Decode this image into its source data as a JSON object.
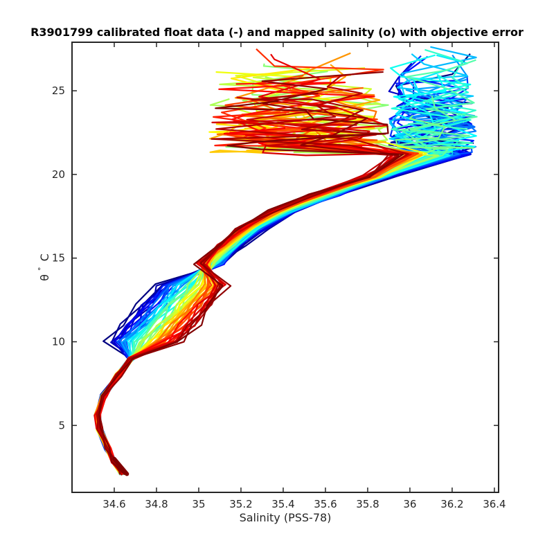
{
  "chart_data": {
    "type": "line",
    "title": "R3901799 calibrated float data (-) and mapped salinity (o) with objective error",
    "xlabel": "Salinity (PSS-78)",
    "ylabel_parts": [
      "θ",
      "°",
      "C"
    ],
    "xlim": [
      34.4,
      36.42
    ],
    "ylim": [
      1.0,
      27.9
    ],
    "xticks": [
      "34.6",
      "34.8",
      "35",
      "35.2",
      "35.4",
      "35.6",
      "35.8",
      "36",
      "36.2",
      "36.4"
    ],
    "yticks": [
      "5",
      "10",
      "15",
      "20",
      "25"
    ],
    "grid": false,
    "colormap": "jet",
    "series_color_order": "blue (early profiles) to dark red (late profiles)",
    "base_profile": {
      "salinity": [
        34.64,
        34.6,
        34.57,
        34.53,
        34.52,
        34.55,
        34.62,
        34.68,
        34.74,
        34.82,
        34.9,
        34.98,
        35.06,
        35.15,
        35.25,
        35.4,
        35.6,
        35.85,
        36.1
      ],
      "theta": [
        2.1,
        2.8,
        3.6,
        4.8,
        5.6,
        6.8,
        8.0,
        9.0,
        10.0,
        11.0,
        12.2,
        13.4,
        14.7,
        15.8,
        16.8,
        17.8,
        18.8,
        19.9,
        21.2
      ]
    },
    "deep_profile_salinity_range": [
      34.52,
      34.66
    ],
    "thermocline_cluster_theta_range": [
      9.5,
      13.5
    ],
    "surface_spread": {
      "theta_range": [
        20.5,
        27.5
      ],
      "early_salinity_range": [
        35.9,
        36.32
      ],
      "late_salinity_range": [
        35.05,
        35.9
      ]
    },
    "profiles_count_estimate": 60
  }
}
